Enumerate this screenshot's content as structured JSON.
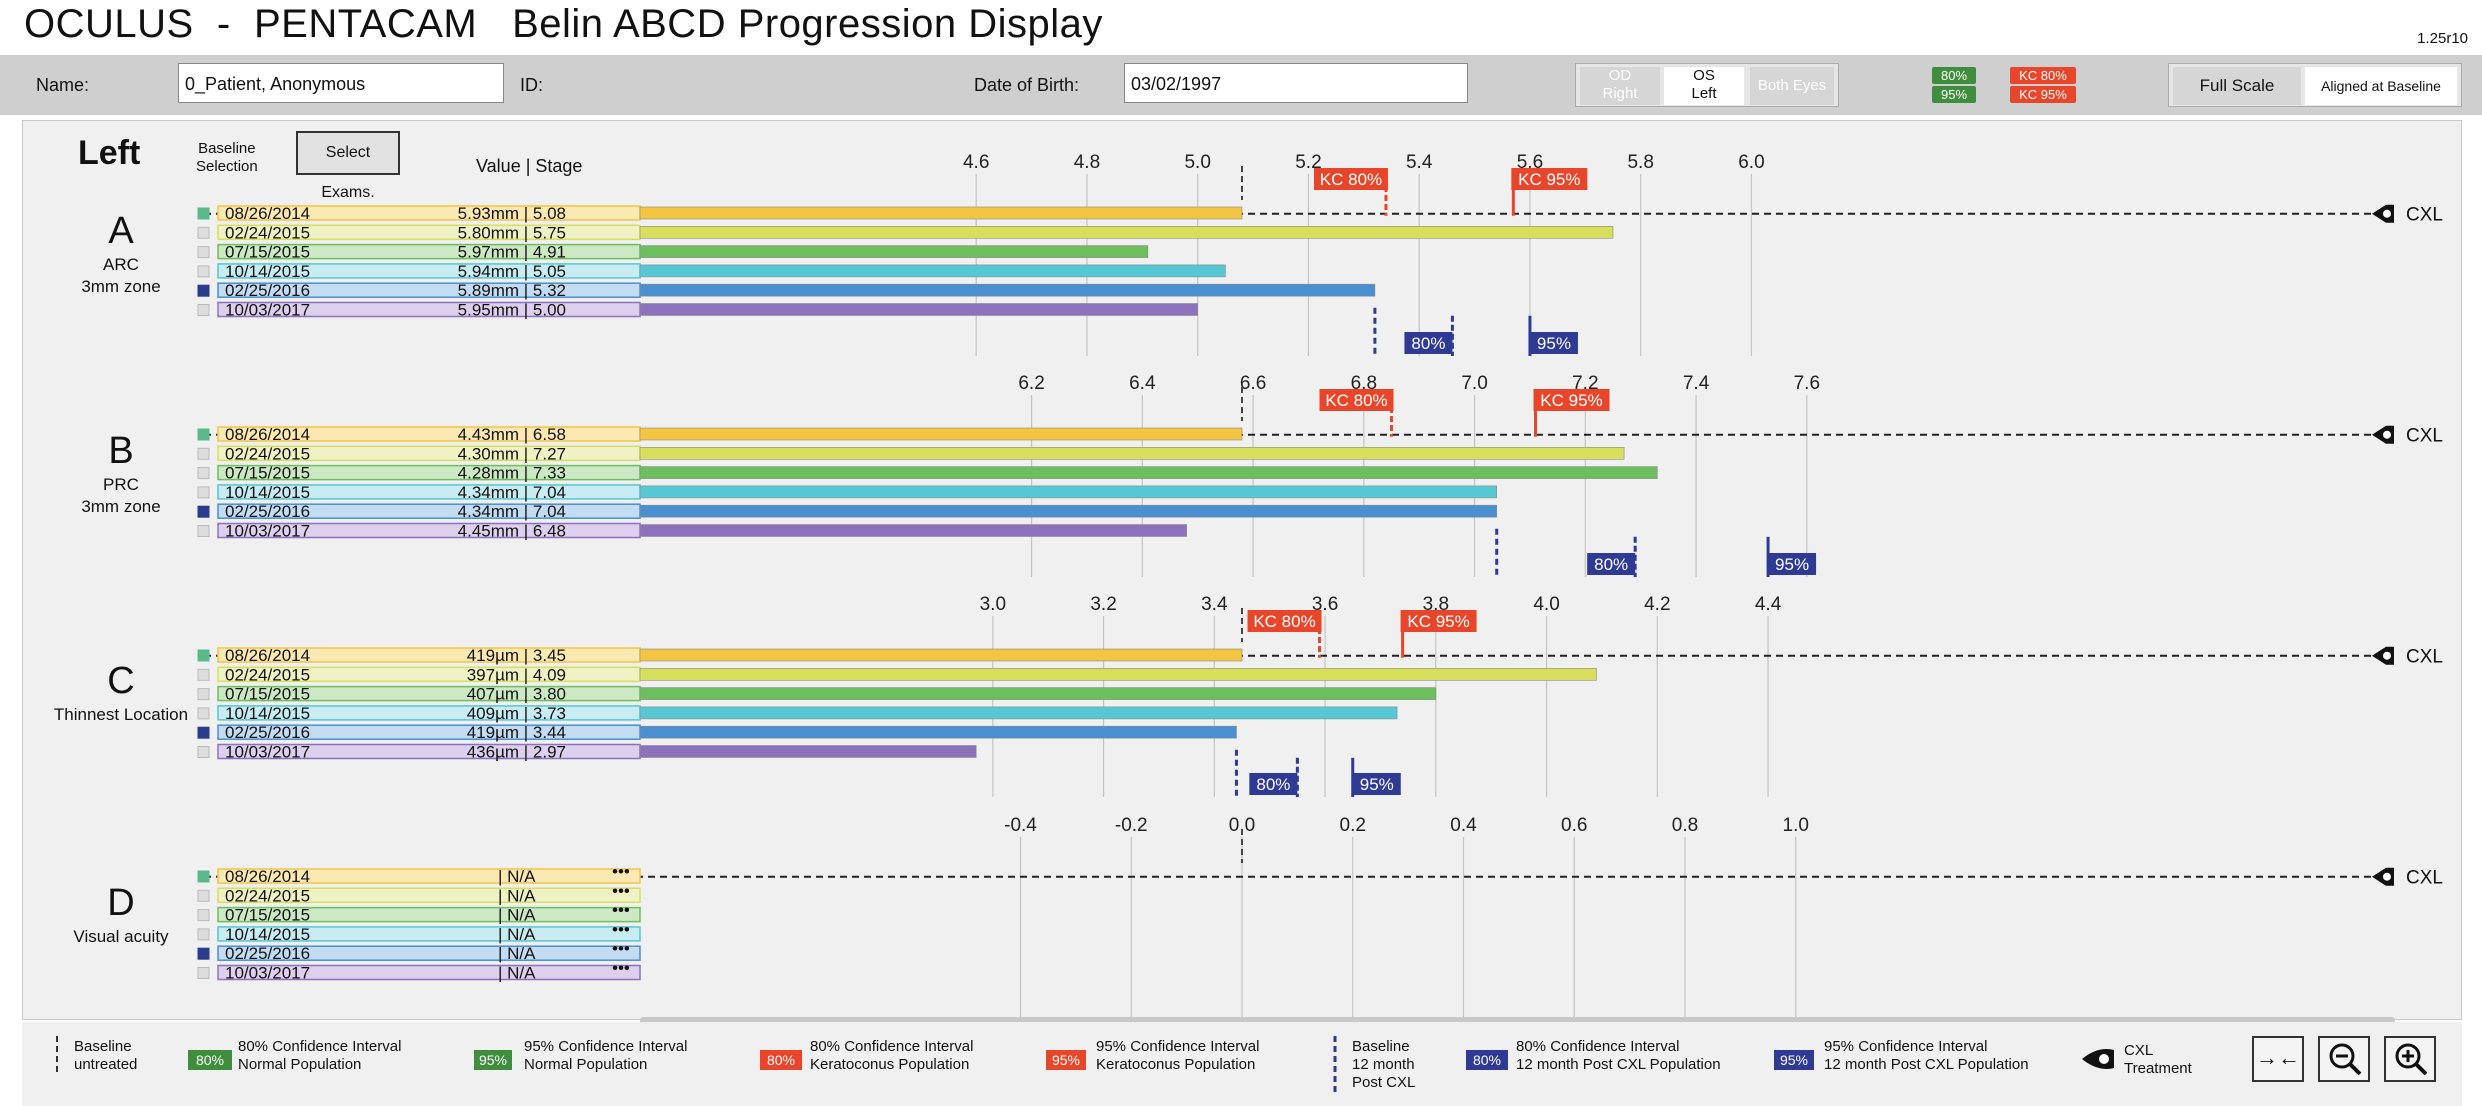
{
  "app": {
    "title": "OCULUS  -  PENTACAM   Belin ABCD Progression Display",
    "version": "1.25r10"
  },
  "header": {
    "name_label": "Name:",
    "name_value": "0_Patient, Anonymous",
    "id_label": "ID:",
    "id_value": "",
    "dob_label": "Date of Birth:",
    "dob_value": "03/02/1997",
    "eye_od_line1": "OD",
    "eye_od_line2": "Right",
    "eye_os_line1": "OS",
    "eye_os_line2": "Left",
    "eye_both": "Both Eyes",
    "ci_green_80": "80%",
    "ci_green_95": "95%",
    "ci_red_80": "KC 80%",
    "ci_red_95": "KC 95%",
    "full_scale": "Full Scale",
    "aligned": "Aligned at Baseline"
  },
  "panel": {
    "eye_title": "Left",
    "baseline_selection": [
      "Baseline",
      "Selection"
    ],
    "select_exams": "Select Exams.",
    "value_stage_header": "Value | Stage",
    "cxl": "CXL",
    "kc80": "KC 80%",
    "kc95": "KC 95%",
    "p80": "80%",
    "p95": "95%"
  },
  "colors": {
    "rows": [
      "#f4c542",
      "#d8df5c",
      "#6cbf5c",
      "#56c7d4",
      "#4a8fd0",
      "#8c72bc"
    ],
    "row_light": [
      "#fbe9b4",
      "#eef2c4",
      "#cde8c4",
      "#c8ecf2",
      "#c4dcf2",
      "#dcd0ec"
    ],
    "kc_red": "#e8462a",
    "post_blue": "#2e3a94",
    "normal_green": "#3e8e3e"
  },
  "dates": [
    "08/26/2014",
    "02/24/2015",
    "07/15/2015",
    "10/14/2015",
    "02/25/2016",
    "10/03/2017"
  ],
  "marker_colors": [
    "#5cba8a",
    "#dddddd",
    "#dddddd",
    "#dddddd",
    "#2b3c8c",
    "#dddddd"
  ],
  "sections": [
    {
      "id": "A",
      "letter": "A",
      "name": [
        "ARC",
        "3mm zone"
      ],
      "ticks": [
        "4.6",
        "4.8",
        "5.0",
        "5.2",
        "5.4",
        "5.6",
        "5.8",
        "6.0"
      ],
      "tick_values": [
        4.6,
        4.8,
        5.0,
        5.2,
        5.4,
        5.6,
        5.8,
        6.0
      ],
      "values_text": [
        "5.93mm | 5.08",
        "5.80mm | 5.75",
        "5.97mm | 4.91",
        "5.94mm | 5.05",
        "5.89mm | 5.32",
        "5.95mm | 5.00"
      ],
      "stages": [
        5.08,
        5.75,
        4.91,
        5.05,
        5.32,
        5.0
      ],
      "baseline": 5.08,
      "kc80": 5.34,
      "kc95": 5.57,
      "post80": 5.46,
      "post95": 5.6,
      "post_baseline": 5.32
    },
    {
      "id": "B",
      "letter": "B",
      "name": [
        "PRC",
        "3mm zone"
      ],
      "ticks": [
        "6.2",
        "6.4",
        "6.6",
        "6.8",
        "7.0",
        "7.2",
        "7.4",
        "7.6"
      ],
      "tick_values": [
        6.2,
        6.4,
        6.6,
        6.8,
        7.0,
        7.2,
        7.4,
        7.6
      ],
      "values_text": [
        "4.43mm | 6.58",
        "4.30mm | 7.27",
        "4.28mm | 7.33",
        "4.34mm | 7.04",
        "4.34mm | 7.04",
        "4.45mm | 6.48"
      ],
      "stages": [
        6.58,
        7.27,
        7.33,
        7.04,
        7.04,
        6.48
      ],
      "baseline": 6.58,
      "kc80": 6.85,
      "kc95": 7.11,
      "post80": 7.29,
      "post95": 7.53,
      "post_baseline": 7.04
    },
    {
      "id": "C",
      "letter": "C",
      "name": [
        "Thinnest Location"
      ],
      "ticks": [
        "3.0",
        "3.2",
        "3.4",
        "3.6",
        "3.8",
        "4.0",
        "4.2",
        "4.4"
      ],
      "tick_values": [
        3.0,
        3.2,
        3.4,
        3.6,
        3.8,
        4.0,
        4.2,
        4.4
      ],
      "values_text": [
        "419µm | 3.45",
        "397µm | 4.09",
        "407µm | 3.80",
        "409µm | 3.73",
        "419µm | 3.44",
        "436µm | 2.97"
      ],
      "stages": [
        3.45,
        4.09,
        3.8,
        3.73,
        3.44,
        2.97
      ],
      "baseline": 3.45,
      "kc80": 3.59,
      "kc95": 3.74,
      "post80": 3.55,
      "post95": 3.65,
      "post_baseline": 3.44
    },
    {
      "id": "D",
      "letter": "D",
      "name": [
        "Visual acuity"
      ],
      "ticks": [
        "-0.4",
        "-0.2",
        "0.0",
        "0.2",
        "0.4",
        "0.6",
        "0.8",
        "1.0"
      ],
      "tick_values": [
        -0.4,
        -0.2,
        0.0,
        0.2,
        0.4,
        0.6,
        0.8,
        1.0
      ],
      "values_text": [
        "| N/A",
        "| N/A",
        "| N/A",
        "| N/A",
        "| N/A",
        "| N/A"
      ],
      "stages": [],
      "baseline": 0.0
    }
  ],
  "legend": {
    "baseline_untreated": [
      "Baseline",
      "untreated"
    ],
    "ci80_normal": [
      "80% Confidence Interval",
      "Normal Population"
    ],
    "ci95_normal": [
      "95% Confidence Interval",
      "Normal Population"
    ],
    "ci80_kc": [
      "80% Confidence Interval",
      "Keratoconus Population"
    ],
    "ci95_kc": [
      "95% Confidence Interval",
      "Keratoconus Population"
    ],
    "baseline_post": [
      "Baseline",
      "12 month",
      "Post CXL"
    ],
    "ci80_post": [
      "80% Confidence Interval",
      "12 month Post CXL Population"
    ],
    "ci95_post": [
      "95% Confidence Interval",
      "12 month Post CXL Population"
    ],
    "cxl_treatment": [
      "CXL",
      "Treatment"
    ],
    "box80": "80%",
    "box95": "95%",
    "zoom_fit": "→←",
    "zoom_out": "−",
    "zoom_in": "+"
  }
}
